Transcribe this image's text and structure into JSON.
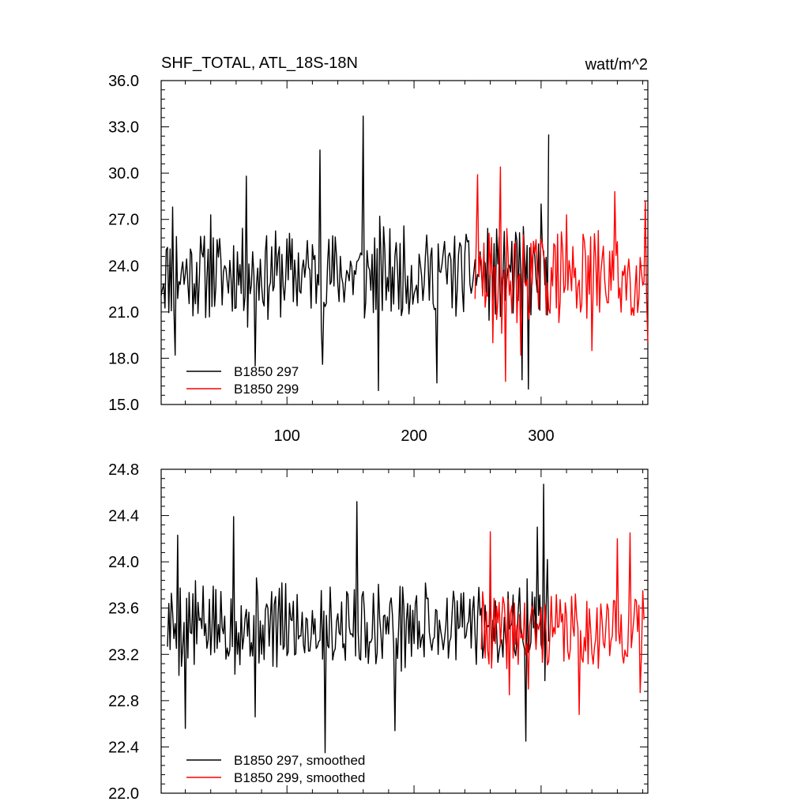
{
  "chart_data": [
    {
      "type": "line",
      "title": "SHF_TOTAL, ATL_18S-18N",
      "units_label": "watt/m^2",
      "xlim": [
        1,
        384
      ],
      "ylim": [
        15,
        36
      ],
      "yticks": [
        "15.0",
        "18.0",
        "21.0",
        "24.0",
        "27.0",
        "30.0",
        "33.0",
        "36.0"
      ],
      "xticks": [
        "100",
        "200",
        "300"
      ],
      "legend": [
        {
          "label": "B1850 297",
          "color": "#000000"
        },
        {
          "label": "B1850 299",
          "color": "#ff0000"
        }
      ],
      "series": [
        {
          "name": "B1850 297",
          "color": "#000000",
          "x_start": 1,
          "x_end": 306,
          "mean": 23.5,
          "amplitude": 2.6,
          "seed": 11,
          "spikes": [
            [
              10,
              27.8
            ],
            [
              12,
              18.2
            ],
            [
              40,
              27.3
            ],
            [
              68,
              29.8
            ],
            [
              75,
              17.5
            ],
            [
              126,
              31.5
            ],
            [
              128,
              17.6
            ],
            [
              160,
              33.7
            ],
            [
              172,
              15.9
            ],
            [
              218,
              16.4
            ],
            [
              285,
              16.6
            ],
            [
              290,
              16.0
            ],
            [
              300,
              28.0
            ],
            [
              306,
              32.5
            ]
          ]
        },
        {
          "name": "B1850 299",
          "color": "#ff0000",
          "x_start": 248,
          "x_end": 384,
          "mean": 23.3,
          "amplitude": 2.7,
          "seed": 29,
          "spikes": [
            [
              250,
              29.9
            ],
            [
              262,
              19.0
            ],
            [
              268,
              30.4
            ],
            [
              272,
              16.5
            ],
            [
              284,
              18.2
            ],
            [
              320,
              27.3
            ],
            [
              340,
              18.5
            ],
            [
              358,
              28.8
            ],
            [
              382,
              28.2
            ],
            [
              384,
              19.0
            ]
          ]
        }
      ]
    },
    {
      "type": "line",
      "title": "",
      "xlim": [
        1,
        384
      ],
      "ylim": [
        22.0,
        24.8
      ],
      "yticks": [
        "22.0",
        "22.4",
        "22.8",
        "23.2",
        "23.6",
        "24.0",
        "24.4",
        "24.8"
      ],
      "xticks": [],
      "legend": [
        {
          "label": "B1850 297, smoothed",
          "color": "#000000"
        },
        {
          "label": "B1850 299, smoothed",
          "color": "#ff0000"
        }
      ],
      "series": [
        {
          "name": "B1850 297, smoothed",
          "color": "#000000",
          "x_start": 6,
          "x_end": 306,
          "mean": 23.45,
          "amplitude": 0.33,
          "seed": 5,
          "spikes": [
            [
              14,
              24.23
            ],
            [
              20,
              22.56
            ],
            [
              58,
              24.39
            ],
            [
              75,
              22.66
            ],
            [
              130,
              22.35
            ],
            [
              155,
              24.52
            ],
            [
              185,
              22.54
            ],
            [
              288,
              22.45
            ],
            [
              297,
              24.3
            ],
            [
              302,
              24.67
            ],
            [
              305,
              24.02
            ]
          ]
        },
        {
          "name": "B1850 299, smoothed",
          "color": "#ff0000",
          "x_start": 253,
          "x_end": 381,
          "mean": 23.4,
          "amplitude": 0.3,
          "seed": 41,
          "spikes": [
            [
              260,
              24.26
            ],
            [
              275,
              22.85
            ],
            [
              290,
              22.9
            ],
            [
              330,
              22.68
            ],
            [
              360,
              24.2
            ],
            [
              370,
              24.25
            ],
            [
              378,
              22.87
            ],
            [
              380,
              23.75
            ],
            [
              381,
              23.5
            ]
          ]
        }
      ]
    }
  ]
}
